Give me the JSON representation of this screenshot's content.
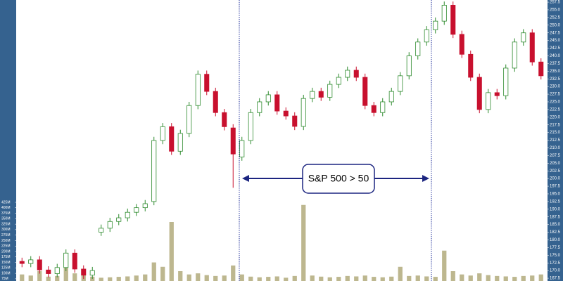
{
  "chart_data": {
    "type": "candlestick",
    "annotation": "S&P 500 > 50",
    "up_color": "#2e8b2e",
    "down_color": "#c8102e",
    "volume_color": "#bdb78f",
    "open": [
      173.0,
      172.3,
      173.5,
      170.2,
      169.0,
      171.0,
      175.7,
      170.5,
      168.5,
      182.5,
      183.8,
      186.0,
      187.2,
      189.0,
      190.5,
      192.5,
      212.4,
      216.9,
      208.9,
      214.7,
      223.8,
      234.0,
      228.4,
      221.5,
      216.5,
      207.0,
      212.4,
      221.5,
      225.0,
      227.3,
      222.0,
      220.4,
      217.0,
      226.1,
      228.4,
      226.5,
      230.7,
      233.0,
      235.3,
      233.0,
      223.8,
      221.5,
      225.0,
      228.4,
      233.5,
      240.0,
      244.5,
      248.5,
      251.3,
      256.5,
      247.0,
      240.5,
      233.0,
      222.5,
      228.0,
      227.0,
      236.0,
      244.5,
      247.5,
      238.0
    ],
    "high": [
      174.2,
      174.7,
      174.7,
      171.4,
      172.2,
      176.9,
      176.9,
      171.7,
      171.2,
      185.0,
      187.2,
      188.4,
      190.2,
      191.7,
      193.0,
      213.6,
      218.1,
      218.1,
      215.9,
      225.0,
      235.2,
      235.2,
      229.6,
      222.7,
      217.7,
      213.6,
      222.7,
      226.2,
      228.5,
      228.5,
      223.2,
      221.6,
      227.3,
      229.6,
      229.6,
      231.9,
      234.2,
      236.5,
      236.5,
      234.2,
      225.0,
      226.2,
      229.6,
      234.7,
      241.2,
      245.7,
      249.7,
      252.5,
      257.7,
      257.7,
      248.2,
      241.7,
      234.2,
      229.2,
      229.2,
      237.2,
      245.7,
      248.7,
      248.7,
      239.2
    ],
    "low": [
      171.1,
      171.1,
      169.0,
      167.8,
      167.8,
      169.8,
      169.3,
      167.3,
      167.3,
      181.3,
      182.6,
      184.8,
      186.0,
      187.8,
      189.3,
      191.3,
      211.2,
      207.7,
      207.7,
      213.5,
      222.6,
      227.2,
      220.3,
      215.7,
      197.0,
      205.8,
      211.2,
      220.3,
      223.8,
      220.8,
      219.2,
      215.8,
      215.8,
      224.9,
      225.3,
      225.3,
      229.5,
      231.8,
      231.8,
      222.6,
      220.3,
      220.3,
      223.8,
      227.2,
      232.3,
      238.8,
      243.3,
      247.3,
      250.1,
      245.8,
      239.3,
      231.8,
      221.3,
      221.3,
      225.8,
      225.8,
      234.8,
      243.3,
      236.8,
      232.3
    ],
    "close": [
      172.3,
      173.5,
      170.2,
      169.0,
      171.0,
      175.7,
      170.5,
      168.5,
      170.0,
      183.8,
      186.0,
      187.2,
      189.0,
      190.5,
      191.8,
      212.4,
      216.9,
      208.9,
      214.7,
      223.8,
      234.0,
      228.4,
      221.5,
      216.9,
      208.0,
      212.4,
      221.5,
      225.0,
      227.3,
      222.0,
      220.4,
      217.0,
      226.1,
      228.4,
      226.5,
      230.7,
      233.0,
      235.3,
      233.0,
      223.8,
      221.5,
      225.0,
      228.4,
      233.5,
      240.0,
      244.5,
      248.5,
      251.3,
      256.5,
      247.0,
      240.5,
      233.0,
      222.5,
      228.0,
      227.0,
      236.0,
      244.5,
      247.5,
      238.0,
      233.5
    ],
    "volume": [
      95,
      90,
      110,
      85,
      88,
      150,
      100,
      92,
      85,
      80,
      82,
      84,
      86,
      90,
      95,
      150,
      130,
      335,
      110,
      95,
      100,
      92,
      88,
      90,
      136,
      95,
      85,
      82,
      84,
      86,
      80,
      88,
      413,
      90,
      85,
      82,
      84,
      88,
      86,
      90,
      84,
      82,
      85,
      130,
      88,
      90,
      86,
      84,
      204,
      110,
      95,
      90,
      100,
      92,
      88,
      86,
      84,
      88,
      90,
      95
    ],
    "ylim": [
      166.6,
      258.2
    ],
    "yticks": [
      167.5,
      {
        "value": 170,
        "label": "170.0"
      },
      172.5,
      {
        "value": 175,
        "label": "175.0"
      },
      177.5,
      {
        "value": 180,
        "label": "180.0"
      },
      182.5,
      {
        "value": 185,
        "label": "185.0"
      },
      187.5,
      {
        "value": 190,
        "label": "190.0"
      },
      192.5,
      {
        "value": 195,
        "label": "195.0"
      },
      197.5,
      {
        "value": 200,
        "label": "200.0"
      },
      202.5,
      {
        "value": 205,
        "label": "205.0"
      },
      207.5,
      {
        "value": 210,
        "label": "210.0"
      },
      212.5,
      {
        "value": 215,
        "label": "215.0"
      },
      217.5,
      {
        "value": 220,
        "label": "220.0"
      },
      222.5,
      {
        "value": 225,
        "label": "225.0"
      },
      227.5,
      {
        "value": 230,
        "label": "230.0"
      },
      232.5,
      {
        "value": 235,
        "label": "235.0"
      },
      237.5,
      {
        "value": 240,
        "label": "240.0"
      },
      242.5,
      {
        "value": 245,
        "label": "245.0"
      },
      247.5,
      {
        "value": 250,
        "label": "250.0"
      },
      252.5,
      {
        "value": 255,
        "label": "255.0"
      },
      257.5
    ],
    "vlim": [
      65,
      425
    ],
    "vticks": [
      {
        "value": 75,
        "label": "75M"
      },
      {
        "value": 100,
        "label": "100M"
      },
      {
        "value": 125,
        "label": "125M"
      },
      {
        "value": 150,
        "label": "150M"
      },
      {
        "value": 175,
        "label": "175M"
      },
      {
        "value": 200,
        "label": "200M"
      },
      {
        "value": 225,
        "label": "225M"
      },
      {
        "value": 250,
        "label": "250M"
      },
      {
        "value": 275,
        "label": "275M"
      },
      {
        "value": 300,
        "label": "300M"
      },
      {
        "value": 325,
        "label": "325M"
      },
      {
        "value": 350,
        "label": "350M"
      },
      {
        "value": 375,
        "label": "375M"
      },
      {
        "value": 400,
        "label": "400M"
      },
      {
        "value": 425,
        "label": "425M"
      }
    ]
  }
}
